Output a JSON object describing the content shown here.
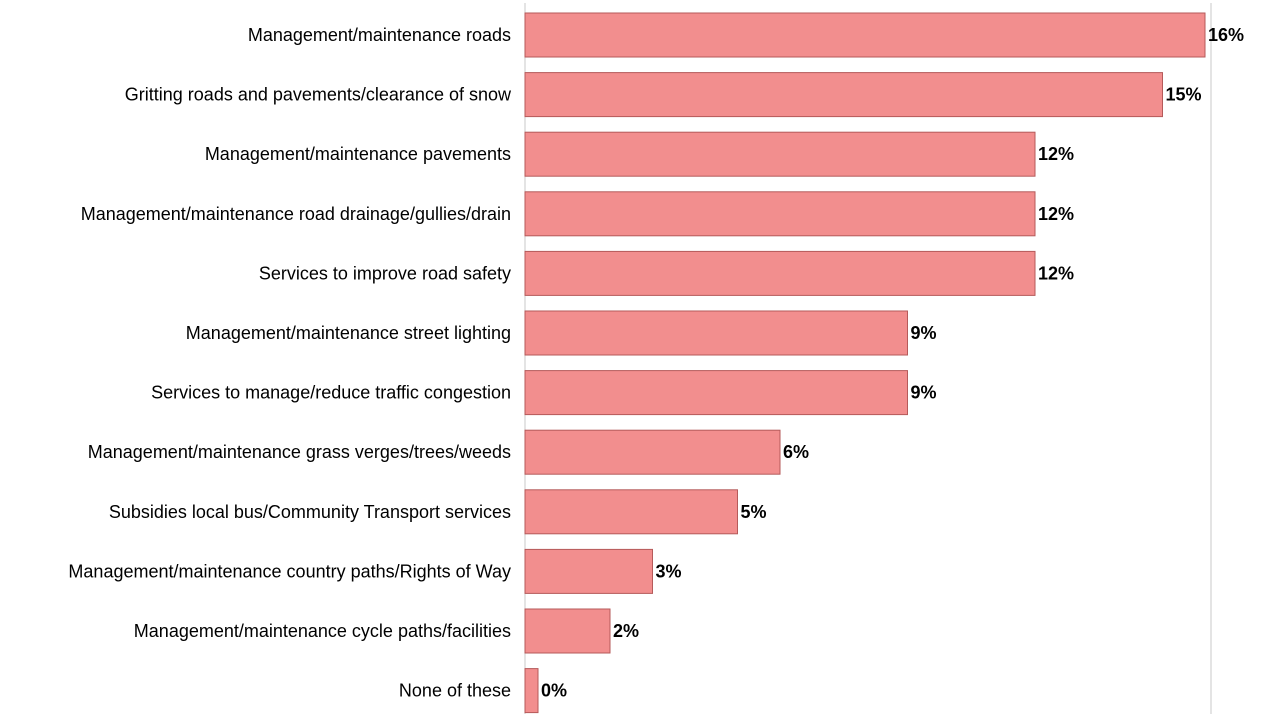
{
  "chart_data": {
    "type": "bar",
    "orientation": "horizontal",
    "categories": [
      "Management/maintenance roads",
      "Gritting roads and pavements/clearance of snow",
      "Management/maintenance pavements",
      "Management/maintenance road drainage/gullies/drain",
      "Services to improve road safety",
      "Management/maintenance street lighting",
      "Services to manage/reduce traffic congestion",
      "Management/maintenance grass verges/trees/weeds",
      "Subsidies local bus/Community Transport services",
      "Management/maintenance country paths/Rights of Way",
      "Management/maintenance cycle paths/facilities",
      "None of these"
    ],
    "values": [
      16,
      15,
      12,
      12,
      12,
      9,
      9,
      6,
      5,
      3,
      2,
      0
    ],
    "value_labels": [
      "16%",
      "15%",
      "12%",
      "12%",
      "12%",
      "9%",
      "9%",
      "6%",
      "5%",
      "3%",
      "2%",
      "0%"
    ],
    "xlim": [
      0,
      16
    ],
    "bar_color": "#f28e8e",
    "bar_edge_color": "#b55a5a",
    "axis_color": "#c8c8c8",
    "grid": false,
    "legend": "none"
  }
}
